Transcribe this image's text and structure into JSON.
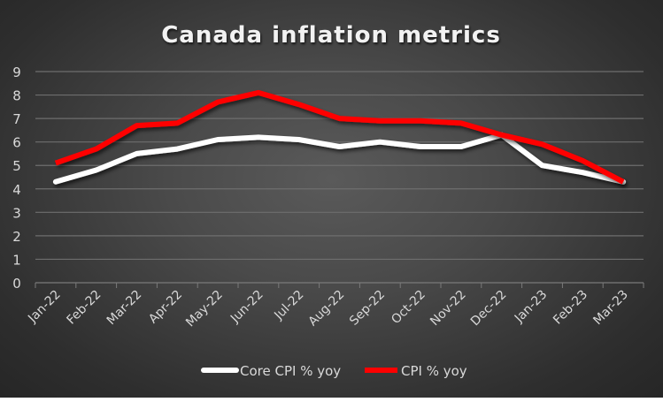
{
  "chart_data": {
    "type": "line",
    "title": "Canada inflation metrics",
    "xlabel": "",
    "ylabel": "",
    "ylim": [
      0,
      9
    ],
    "yticks": [
      "0",
      "1",
      "2",
      "3",
      "4",
      "5",
      "6",
      "7",
      "8",
      "9"
    ],
    "grid": true,
    "legend_position": "bottom",
    "categories": [
      "Jan-22",
      "Feb-22",
      "Mar-22",
      "Apr-22",
      "May-22",
      "Jun-22",
      "Jul-22",
      "Aug-22",
      "Sep-22",
      "Oct-22",
      "Nov-22",
      "Dec-22",
      "Jan-23",
      "Feb-23",
      "Mar-23"
    ],
    "series": [
      {
        "name": "Core CPI % yoy",
        "color": "#ffffff",
        "values": [
          4.3,
          4.8,
          5.5,
          5.7,
          6.1,
          6.2,
          6.1,
          5.8,
          6.0,
          5.8,
          5.8,
          6.3,
          5.0,
          4.7,
          4.3
        ]
      },
      {
        "name": "CPI % yoy",
        "color": "#ff0000",
        "values": [
          5.1,
          5.7,
          6.7,
          6.8,
          7.7,
          8.1,
          7.6,
          7.0,
          6.9,
          6.9,
          6.8,
          6.3,
          5.9,
          5.2,
          4.3
        ]
      }
    ]
  }
}
